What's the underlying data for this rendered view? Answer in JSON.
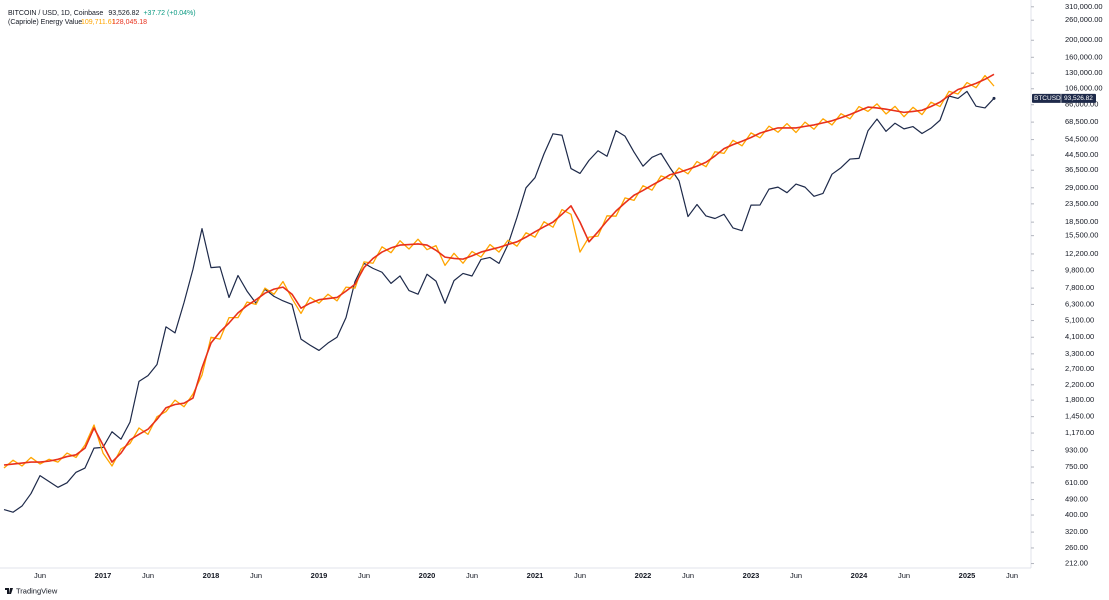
{
  "chart_data": {
    "type": "line",
    "header": {
      "symbol": "BITCOIN / USD, 1D, Coinbase",
      "price": "93,526.82",
      "change": "+37.72 (+0.04%)"
    },
    "indicator": {
      "name": "(Capriole) Energy Value",
      "values": [
        "109,711.61",
        "128,045.18"
      ]
    },
    "brand": "TradingView",
    "ylog": true,
    "grid": false,
    "ylim": [
      200,
      330000
    ],
    "yticks": [
      {
        "value": 310000,
        "label": "310,000.00"
      },
      {
        "value": 260000,
        "label": "260,000.00"
      },
      {
        "value": 200000,
        "label": "200,000.00"
      },
      {
        "value": 160000,
        "label": "160,000.00"
      },
      {
        "value": 130000,
        "label": "130,000.00"
      },
      {
        "value": 106000,
        "label": "106,000.00"
      },
      {
        "value": 86000,
        "label": "86,000.00"
      },
      {
        "value": 68500,
        "label": "68,500.00"
      },
      {
        "value": 54500,
        "label": "54,500.00"
      },
      {
        "value": 44500,
        "label": "44,500.00"
      },
      {
        "value": 36500,
        "label": "36,500.00"
      },
      {
        "value": 29000,
        "label": "29,000.00"
      },
      {
        "value": 23500,
        "label": "23,500.00"
      },
      {
        "value": 18500,
        "label": "18,500.00"
      },
      {
        "value": 15500,
        "label": "15,500.00"
      },
      {
        "value": 12200,
        "label": "12,200.00"
      },
      {
        "value": 9800,
        "label": "9,800.00"
      },
      {
        "value": 7800,
        "label": "7,800.00"
      },
      {
        "value": 6300,
        "label": "6,300.00"
      },
      {
        "value": 5100,
        "label": "5,100.00"
      },
      {
        "value": 4100,
        "label": "4,100.00"
      },
      {
        "value": 3300,
        "label": "3,300.00"
      },
      {
        "value": 2700,
        "label": "2,700.00"
      },
      {
        "value": 2200,
        "label": "2,200.00"
      },
      {
        "value": 1800,
        "label": "1,800.00"
      },
      {
        "value": 1450,
        "label": "1,450.00"
      },
      {
        "value": 1170,
        "label": "1,170.00"
      },
      {
        "value": 930,
        "label": "930.00"
      },
      {
        "value": 750,
        "label": "750.00"
      },
      {
        "value": 610,
        "label": "610.00"
      },
      {
        "value": 490,
        "label": "490.00"
      },
      {
        "value": 400,
        "label": "400.00"
      },
      {
        "value": 320,
        "label": "320.00"
      },
      {
        "value": 260,
        "label": "260.00"
      },
      {
        "value": 212,
        "label": "212.00"
      }
    ],
    "xlim": [
      "2016-02",
      "2025-08"
    ],
    "xticks": [
      {
        "value": "2016-06",
        "label": "Jun"
      },
      {
        "value": "2017-01",
        "label": "2017"
      },
      {
        "value": "2017-06",
        "label": "Jun"
      },
      {
        "value": "2018-01",
        "label": "2018"
      },
      {
        "value": "2018-06",
        "label": "Jun"
      },
      {
        "value": "2019-01",
        "label": "2019"
      },
      {
        "value": "2019-06",
        "label": "Jun"
      },
      {
        "value": "2020-01",
        "label": "2020"
      },
      {
        "value": "2020-06",
        "label": "Jun"
      },
      {
        "value": "2021-01",
        "label": "2021"
      },
      {
        "value": "2021-06",
        "label": "Jun"
      },
      {
        "value": "2022-01",
        "label": "2022"
      },
      {
        "value": "2022-06",
        "label": "Jun"
      },
      {
        "value": "2023-01",
        "label": "2023"
      },
      {
        "value": "2023-06",
        "label": "Jun"
      },
      {
        "value": "2024-01",
        "label": "2024"
      },
      {
        "value": "2024-06",
        "label": "Jun"
      },
      {
        "value": "2025-01",
        "label": "2025"
      },
      {
        "value": "2025-06",
        "label": "Jun"
      }
    ],
    "x": [
      "2016-02",
      "2016-03",
      "2016-04",
      "2016-05",
      "2016-06",
      "2016-07",
      "2016-08",
      "2016-09",
      "2016-10",
      "2016-11",
      "2016-12",
      "2017-01",
      "2017-02",
      "2017-03",
      "2017-04",
      "2017-05",
      "2017-06",
      "2017-07",
      "2017-08",
      "2017-09",
      "2017-10",
      "2017-11",
      "2017-12",
      "2018-01",
      "2018-02",
      "2018-03",
      "2018-04",
      "2018-05",
      "2018-06",
      "2018-07",
      "2018-08",
      "2018-09",
      "2018-10",
      "2018-11",
      "2018-12",
      "2019-01",
      "2019-02",
      "2019-03",
      "2019-04",
      "2019-05",
      "2019-06",
      "2019-07",
      "2019-08",
      "2019-09",
      "2019-10",
      "2019-11",
      "2019-12",
      "2020-01",
      "2020-02",
      "2020-03",
      "2020-04",
      "2020-05",
      "2020-06",
      "2020-07",
      "2020-08",
      "2020-09",
      "2020-10",
      "2020-11",
      "2020-12",
      "2021-01",
      "2021-02",
      "2021-03",
      "2021-04",
      "2021-05",
      "2021-06",
      "2021-07",
      "2021-08",
      "2021-09",
      "2021-10",
      "2021-11",
      "2021-12",
      "2022-01",
      "2022-02",
      "2022-03",
      "2022-04",
      "2022-05",
      "2022-06",
      "2022-07",
      "2022-08",
      "2022-09",
      "2022-10",
      "2022-11",
      "2022-12",
      "2023-01",
      "2023-02",
      "2023-03",
      "2023-04",
      "2023-05",
      "2023-06",
      "2023-07",
      "2023-08",
      "2023-09",
      "2023-10",
      "2023-11",
      "2023-12",
      "2024-01",
      "2024-02",
      "2024-03",
      "2024-04",
      "2024-05",
      "2024-06",
      "2024-07",
      "2024-08",
      "2024-09",
      "2024-10",
      "2024-11",
      "2024-12",
      "2025-01",
      "2025-02",
      "2025-03",
      "2025-04"
    ],
    "series": [
      {
        "name": "BTCUSD",
        "color": "#1e2a4a",
        "width": 1.2,
        "values": [
          430,
          415,
          450,
          530,
          670,
          620,
          575,
          610,
          700,
          740,
          960,
          970,
          1190,
          1080,
          1350,
          2300,
          2480,
          2870,
          4700,
          4340,
          6450,
          10000,
          17000,
          10200,
          10300,
          6900,
          9200,
          7500,
          6400,
          7700,
          7000,
          6600,
          6300,
          4000,
          3700,
          3450,
          3800,
          4100,
          5300,
          8500,
          10800,
          10100,
          9600,
          8300,
          9150,
          7550,
          7200,
          9350,
          8550,
          6400,
          8600,
          9450,
          9140,
          11350,
          11650,
          10780,
          13800,
          19700,
          29000,
          33100,
          45200,
          58800,
          57700,
          37300,
          35000,
          41500,
          47100,
          43800,
          61300,
          57000,
          46300,
          38500,
          43200,
          45500,
          37700,
          31800,
          19900,
          23300,
          20050,
          19400,
          20500,
          17150,
          16550,
          23100,
          23150,
          28500,
          29250,
          27200,
          30450,
          29250,
          25950,
          26950,
          34650,
          37700,
          42250,
          42600,
          61200,
          71300,
          60700,
          67500,
          62700,
          64600,
          59000,
          63300,
          70200,
          96400,
          93400,
          102400,
          84400,
          82500,
          93526.82
        ]
      },
      {
        "color": "#ffa500",
        "width": 1.3,
        "values": [
          740,
          820,
          760,
          850,
          780,
          830,
          800,
          900,
          850,
          1000,
          1300,
          900,
          760,
          950,
          1020,
          1250,
          1150,
          1450,
          1550,
          1800,
          1650,
          1950,
          2500,
          4100,
          4000,
          5300,
          5300,
          6500,
          6300,
          7800,
          7200,
          8500,
          6800,
          5600,
          6900,
          6400,
          7200,
          6600,
          7900,
          7800,
          11000,
          10800,
          13400,
          12400,
          14500,
          13000,
          14800,
          12900,
          13600,
          10500,
          12300,
          10800,
          12600,
          11700,
          13800,
          12500,
          14600,
          13500,
          16100,
          15200,
          18600,
          17300,
          21800,
          20500,
          12500,
          15200,
          15400,
          20100,
          20000,
          25400,
          24600,
          29800,
          28100,
          33900,
          32500,
          37600,
          34800,
          40900,
          38200,
          46500,
          45500,
          54000,
          50200,
          59500,
          55800,
          65000,
          60000,
          67200,
          59800,
          68500,
          62400,
          71600,
          66000,
          76500,
          71500,
          84000,
          78800,
          87000,
          76200,
          84200,
          73500,
          83200,
          75600,
          88900,
          84000,
          102500,
          99000,
          115000,
          107500,
          126000,
          109711.61
        ]
      },
      {
        "color": "#e8301c",
        "width": 1.6,
        "values": [
          770,
          780,
          790,
          800,
          800,
          810,
          830,
          860,
          880,
          960,
          1250,
          1000,
          800,
          900,
          1070,
          1150,
          1230,
          1400,
          1630,
          1700,
          1730,
          1850,
          2750,
          3800,
          4400,
          4940,
          5640,
          6200,
          6700,
          7300,
          7700,
          7900,
          7200,
          6000,
          6400,
          6700,
          6800,
          6900,
          7500,
          8200,
          10200,
          11500,
          12500,
          13200,
          13700,
          13800,
          13900,
          13700,
          12800,
          11700,
          11500,
          11400,
          11900,
          12500,
          12900,
          13300,
          13800,
          14300,
          15200,
          16300,
          17400,
          18500,
          20500,
          22900,
          18500,
          14300,
          16300,
          18800,
          21400,
          23800,
          26300,
          28000,
          30000,
          32000,
          34400,
          35500,
          36900,
          38500,
          40500,
          44000,
          48400,
          51000,
          53300,
          56000,
          59300,
          61500,
          63500,
          63500,
          63500,
          64800,
          66000,
          67800,
          69700,
          72500,
          75700,
          79500,
          83400,
          82500,
          81100,
          79500,
          77800,
          78800,
          80000,
          84000,
          89000,
          97000,
          105000,
          109000,
          113700,
          120000,
          128045.18
        ]
      }
    ]
  }
}
